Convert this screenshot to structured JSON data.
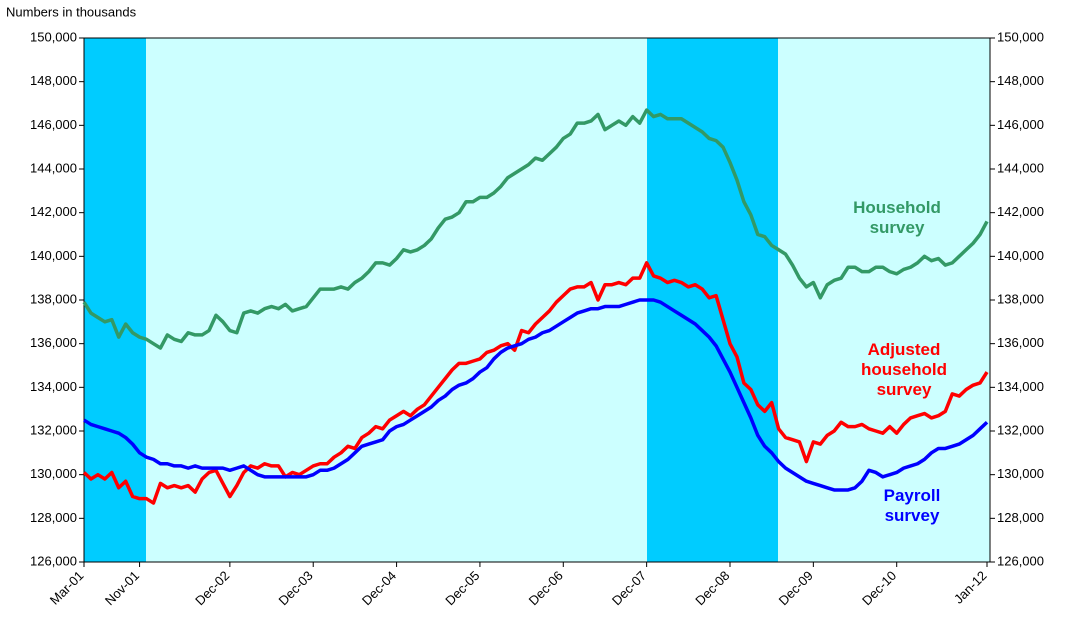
{
  "chart_data": {
    "type": "line",
    "title": "Numbers in thousands",
    "categories": [
      "Mar-01",
      null,
      null,
      null,
      null,
      null,
      null,
      null,
      "Nov-01",
      null,
      null,
      null,
      null,
      null,
      null,
      null,
      null,
      null,
      null,
      null,
      null,
      "Dec-02",
      null,
      null,
      null,
      null,
      null,
      null,
      null,
      null,
      null,
      null,
      null,
      "Dec-03",
      null,
      null,
      null,
      null,
      null,
      null,
      null,
      null,
      null,
      null,
      null,
      "Dec-04",
      null,
      null,
      null,
      null,
      null,
      null,
      null,
      null,
      null,
      null,
      null,
      "Dec-05",
      null,
      null,
      null,
      null,
      null,
      null,
      null,
      null,
      null,
      null,
      null,
      "Dec-06",
      null,
      null,
      null,
      null,
      null,
      null,
      null,
      null,
      null,
      null,
      null,
      "Dec-07",
      null,
      null,
      null,
      null,
      null,
      null,
      null,
      null,
      null,
      null,
      null,
      "Dec-08",
      null,
      null,
      null,
      null,
      null,
      null,
      null,
      null,
      null,
      null,
      null,
      "Dec-09",
      null,
      null,
      null,
      null,
      null,
      null,
      null,
      null,
      null,
      null,
      null,
      "Dec-10",
      null,
      null,
      null,
      null,
      null,
      null,
      null,
      null,
      null,
      null,
      null,
      null,
      "Jan-12"
    ],
    "series": [
      {
        "name": "Household survey",
        "color": "#339966",
        "values": [
          137900,
          137400,
          137200,
          137000,
          137100,
          136300,
          136900,
          136500,
          136300,
          136200,
          136000,
          135800,
          136400,
          136200,
          136100,
          136500,
          136400,
          136400,
          136600,
          137300,
          137000,
          136600,
          136500,
          137400,
          137500,
          137400,
          137600,
          137700,
          137600,
          137800,
          137500,
          137600,
          137700,
          138100,
          138500,
          138500,
          138500,
          138600,
          138500,
          138800,
          139000,
          139300,
          139700,
          139700,
          139600,
          139900,
          140300,
          140200,
          140300,
          140500,
          140800,
          141300,
          141700,
          141800,
          142000,
          142500,
          142500,
          142700,
          142700,
          142900,
          143200,
          143600,
          143800,
          144000,
          144200,
          144500,
          144400,
          144700,
          145000,
          145400,
          145600,
          146100,
          146100,
          146200,
          146500,
          145800,
          146000,
          146200,
          146000,
          146400,
          146100,
          146700,
          146400,
          146500,
          146300,
          146300,
          146300,
          146100,
          145900,
          145700,
          145400,
          145300,
          145000,
          144300,
          143500,
          142500,
          141900,
          141000,
          140900,
          140500,
          140300,
          140100,
          139600,
          139000,
          138600,
          138800,
          138100,
          138700,
          138900,
          139000,
          139500,
          139500,
          139300,
          139300,
          139500,
          139500,
          139300,
          139200,
          139400,
          139500,
          139700,
          140000,
          139800,
          139900,
          139600,
          139700,
          140000,
          140300,
          140600,
          141000,
          141600
        ]
      },
      {
        "name": "Adjusted household survey",
        "color": "#ff0000",
        "values": [
          130100,
          129800,
          130000,
          129800,
          130100,
          129400,
          129700,
          129000,
          128900,
          128900,
          128700,
          129600,
          129400,
          129500,
          129400,
          129500,
          129200,
          129800,
          130100,
          130200,
          129600,
          129000,
          129500,
          130100,
          130400,
          130300,
          130500,
          130400,
          130400,
          129900,
          130100,
          130000,
          130200,
          130400,
          130500,
          130500,
          130800,
          131000,
          131300,
          131200,
          131700,
          131900,
          132200,
          132100,
          132500,
          132700,
          132900,
          132700,
          133000,
          133200,
          133600,
          134000,
          134400,
          134800,
          135100,
          135100,
          135200,
          135300,
          135600,
          135700,
          135900,
          136000,
          135700,
          136600,
          136500,
          136900,
          137200,
          137500,
          137900,
          138200,
          138500,
          138600,
          138600,
          138800,
          138000,
          138700,
          138700,
          138800,
          138700,
          139000,
          139000,
          139700,
          139100,
          139000,
          138800,
          138900,
          138800,
          138600,
          138700,
          138500,
          138100,
          138200,
          137100,
          136000,
          135400,
          134200,
          133900,
          133200,
          132900,
          133300,
          132100,
          131700,
          131600,
          131500,
          130600,
          131500,
          131400,
          131800,
          132000,
          132400,
          132200,
          132200,
          132300,
          132100,
          132000,
          131900,
          132200,
          131900,
          132300,
          132600,
          132700,
          132800,
          132600,
          132700,
          132900,
          133700,
          133600,
          133900,
          134100,
          134200,
          134700
        ]
      },
      {
        "name": "Payroll survey",
        "color": "#0000ff",
        "values": [
          132500,
          132300,
          132200,
          132100,
          132000,
          131900,
          131700,
          131400,
          131000,
          130800,
          130700,
          130500,
          130500,
          130400,
          130400,
          130300,
          130400,
          130300,
          130300,
          130300,
          130300,
          130200,
          130300,
          130400,
          130200,
          130000,
          129900,
          129900,
          129900,
          129900,
          129900,
          129900,
          129900,
          130000,
          130200,
          130200,
          130300,
          130500,
          130700,
          131000,
          131300,
          131400,
          131500,
          131600,
          132000,
          132200,
          132300,
          132500,
          132700,
          132900,
          133100,
          133400,
          133600,
          133900,
          134100,
          134200,
          134400,
          134700,
          134900,
          135300,
          135600,
          135800,
          135900,
          136000,
          136200,
          136300,
          136500,
          136600,
          136800,
          137000,
          137200,
          137400,
          137500,
          137600,
          137600,
          137700,
          137700,
          137700,
          137800,
          137900,
          138000,
          138000,
          138000,
          137900,
          137700,
          137500,
          137300,
          137100,
          136900,
          136600,
          136300,
          135900,
          135300,
          134700,
          134000,
          133300,
          132600,
          131800,
          131300,
          131000,
          130600,
          130300,
          130100,
          129900,
          129700,
          129600,
          129500,
          129400,
          129300,
          129300,
          129300,
          129400,
          129700,
          130200,
          130100,
          129900,
          130000,
          130100,
          130300,
          130400,
          130500,
          130700,
          131000,
          131200,
          131200,
          131300,
          131400,
          131600,
          131800,
          132100,
          132400
        ]
      }
    ],
    "ylim": [
      126000,
      150000
    ],
    "yticks": [
      {
        "value": 126000,
        "label": "126,000"
      },
      {
        "value": 128000,
        "label": "128,000"
      },
      {
        "value": 130000,
        "label": "130,000"
      },
      {
        "value": 132000,
        "label": "132,000"
      },
      {
        "value": 134000,
        "label": "134,000"
      },
      {
        "value": 136000,
        "label": "136,000"
      },
      {
        "value": 138000,
        "label": "138,000"
      },
      {
        "value": 140000,
        "label": "140,000"
      },
      {
        "value": 142000,
        "label": "142,000"
      },
      {
        "value": 144000,
        "label": "144,000"
      },
      {
        "value": 146000,
        "label": "146,000"
      },
      {
        "value": 148000,
        "label": "148,000"
      },
      {
        "value": 150000,
        "label": "150,000"
      }
    ],
    "grid": false
  }
}
